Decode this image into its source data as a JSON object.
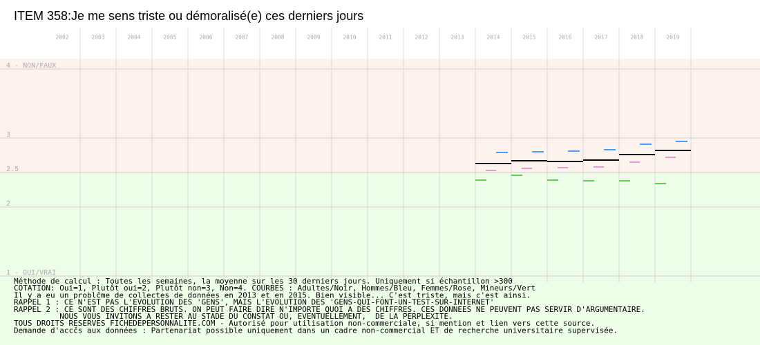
{
  "chart_data": {
    "type": "segments",
    "title": "ITEM 358:Je me sens triste ou démoralisé(e) ces derniers jours",
    "categories": [
      "2002",
      "2003",
      "2004",
      "2005",
      "2006",
      "2007",
      "2008",
      "2009",
      "2010",
      "2011",
      "2012",
      "2013",
      "2014",
      "2015",
      "2016",
      "2017",
      "2018",
      "2019"
    ],
    "ylim": [
      1,
      4
    ],
    "yticks": [
      {
        "value": 4,
        "label": "4 - NON/FAUX"
      },
      3,
      2.5,
      2,
      {
        "value": 1,
        "label": "1 - OUI/VRAI"
      }
    ],
    "grid": true,
    "zone_colors": [
      "#fdf3ee",
      "#edfde8"
    ],
    "series": [
      {
        "color": "#000000",
        "values": [
          null,
          null,
          null,
          null,
          null,
          null,
          null,
          null,
          null,
          null,
          null,
          null,
          2.63,
          2.67,
          2.66,
          2.68,
          2.76,
          2.82
        ]
      },
      {
        "color": "#5599ee",
        "values": [
          null,
          null,
          null,
          null,
          null,
          null,
          null,
          null,
          null,
          null,
          null,
          null,
          2.79,
          2.8,
          2.81,
          2.83,
          2.91,
          2.95
        ]
      },
      {
        "color": "#ee99cc",
        "values": [
          null,
          null,
          null,
          null,
          null,
          null,
          null,
          null,
          null,
          null,
          null,
          null,
          2.53,
          2.56,
          2.57,
          2.58,
          2.65,
          2.72
        ]
      },
      {
        "color": "#66cc55",
        "values": [
          null,
          null,
          null,
          null,
          null,
          null,
          null,
          null,
          null,
          null,
          null,
          null,
          2.39,
          2.46,
          2.39,
          2.38,
          2.38,
          2.34
        ]
      }
    ],
    "notes": [
      "Méthode de calcul : Toutes les semaines, la moyenne sur les 30 derniers jours. Uniquement si échantillon >300",
      "COTATION: Oui=1, Plutôt oui=2, Plutôt non=3, Non=4. COURBES : Adultes/Noir, Hommes/Bleu, Femmes/Rose, Mineurs/Vert",
      "Il y a eu un problčme de collectes de données en 2013 et en 2015. Bien visible... C'est triste, mais c'est ainsi.",
      "RAPPEL 1 : CE N'EST PAS L'EVOLUTION DES 'GENS', MAIS L'EVOLUTION DES 'GENS-QUI-FONT-UN-TEST-SUR-INTERNET'",
      "RAPPEL 2 : CE SONT DES CHIFFRES BRUTS. ON PEUT FAIRE DIRE N'IMPORTE QUOI A DES CHIFFRES. CES DONNEES NE PEUVENT PAS SERVIR D'ARGUMENTAIRE.",
      "          NOUS VOUS INVITONS A RESTER AU STADE DU CONSTAT OU, EVENTUELLEMENT,  DE LA PERPLEXITE.",
      "TOUS DROITS RESERVES FICHEDEPERSONNALITE.COM - Autorisé pour utilisation non-commerciale, si mention et lien vers cette source.",
      "Demande d'accčs aux données : Partenariat possible uniquement dans un cadre non-commercial ET de recherche universitaire supervisée."
    ]
  }
}
